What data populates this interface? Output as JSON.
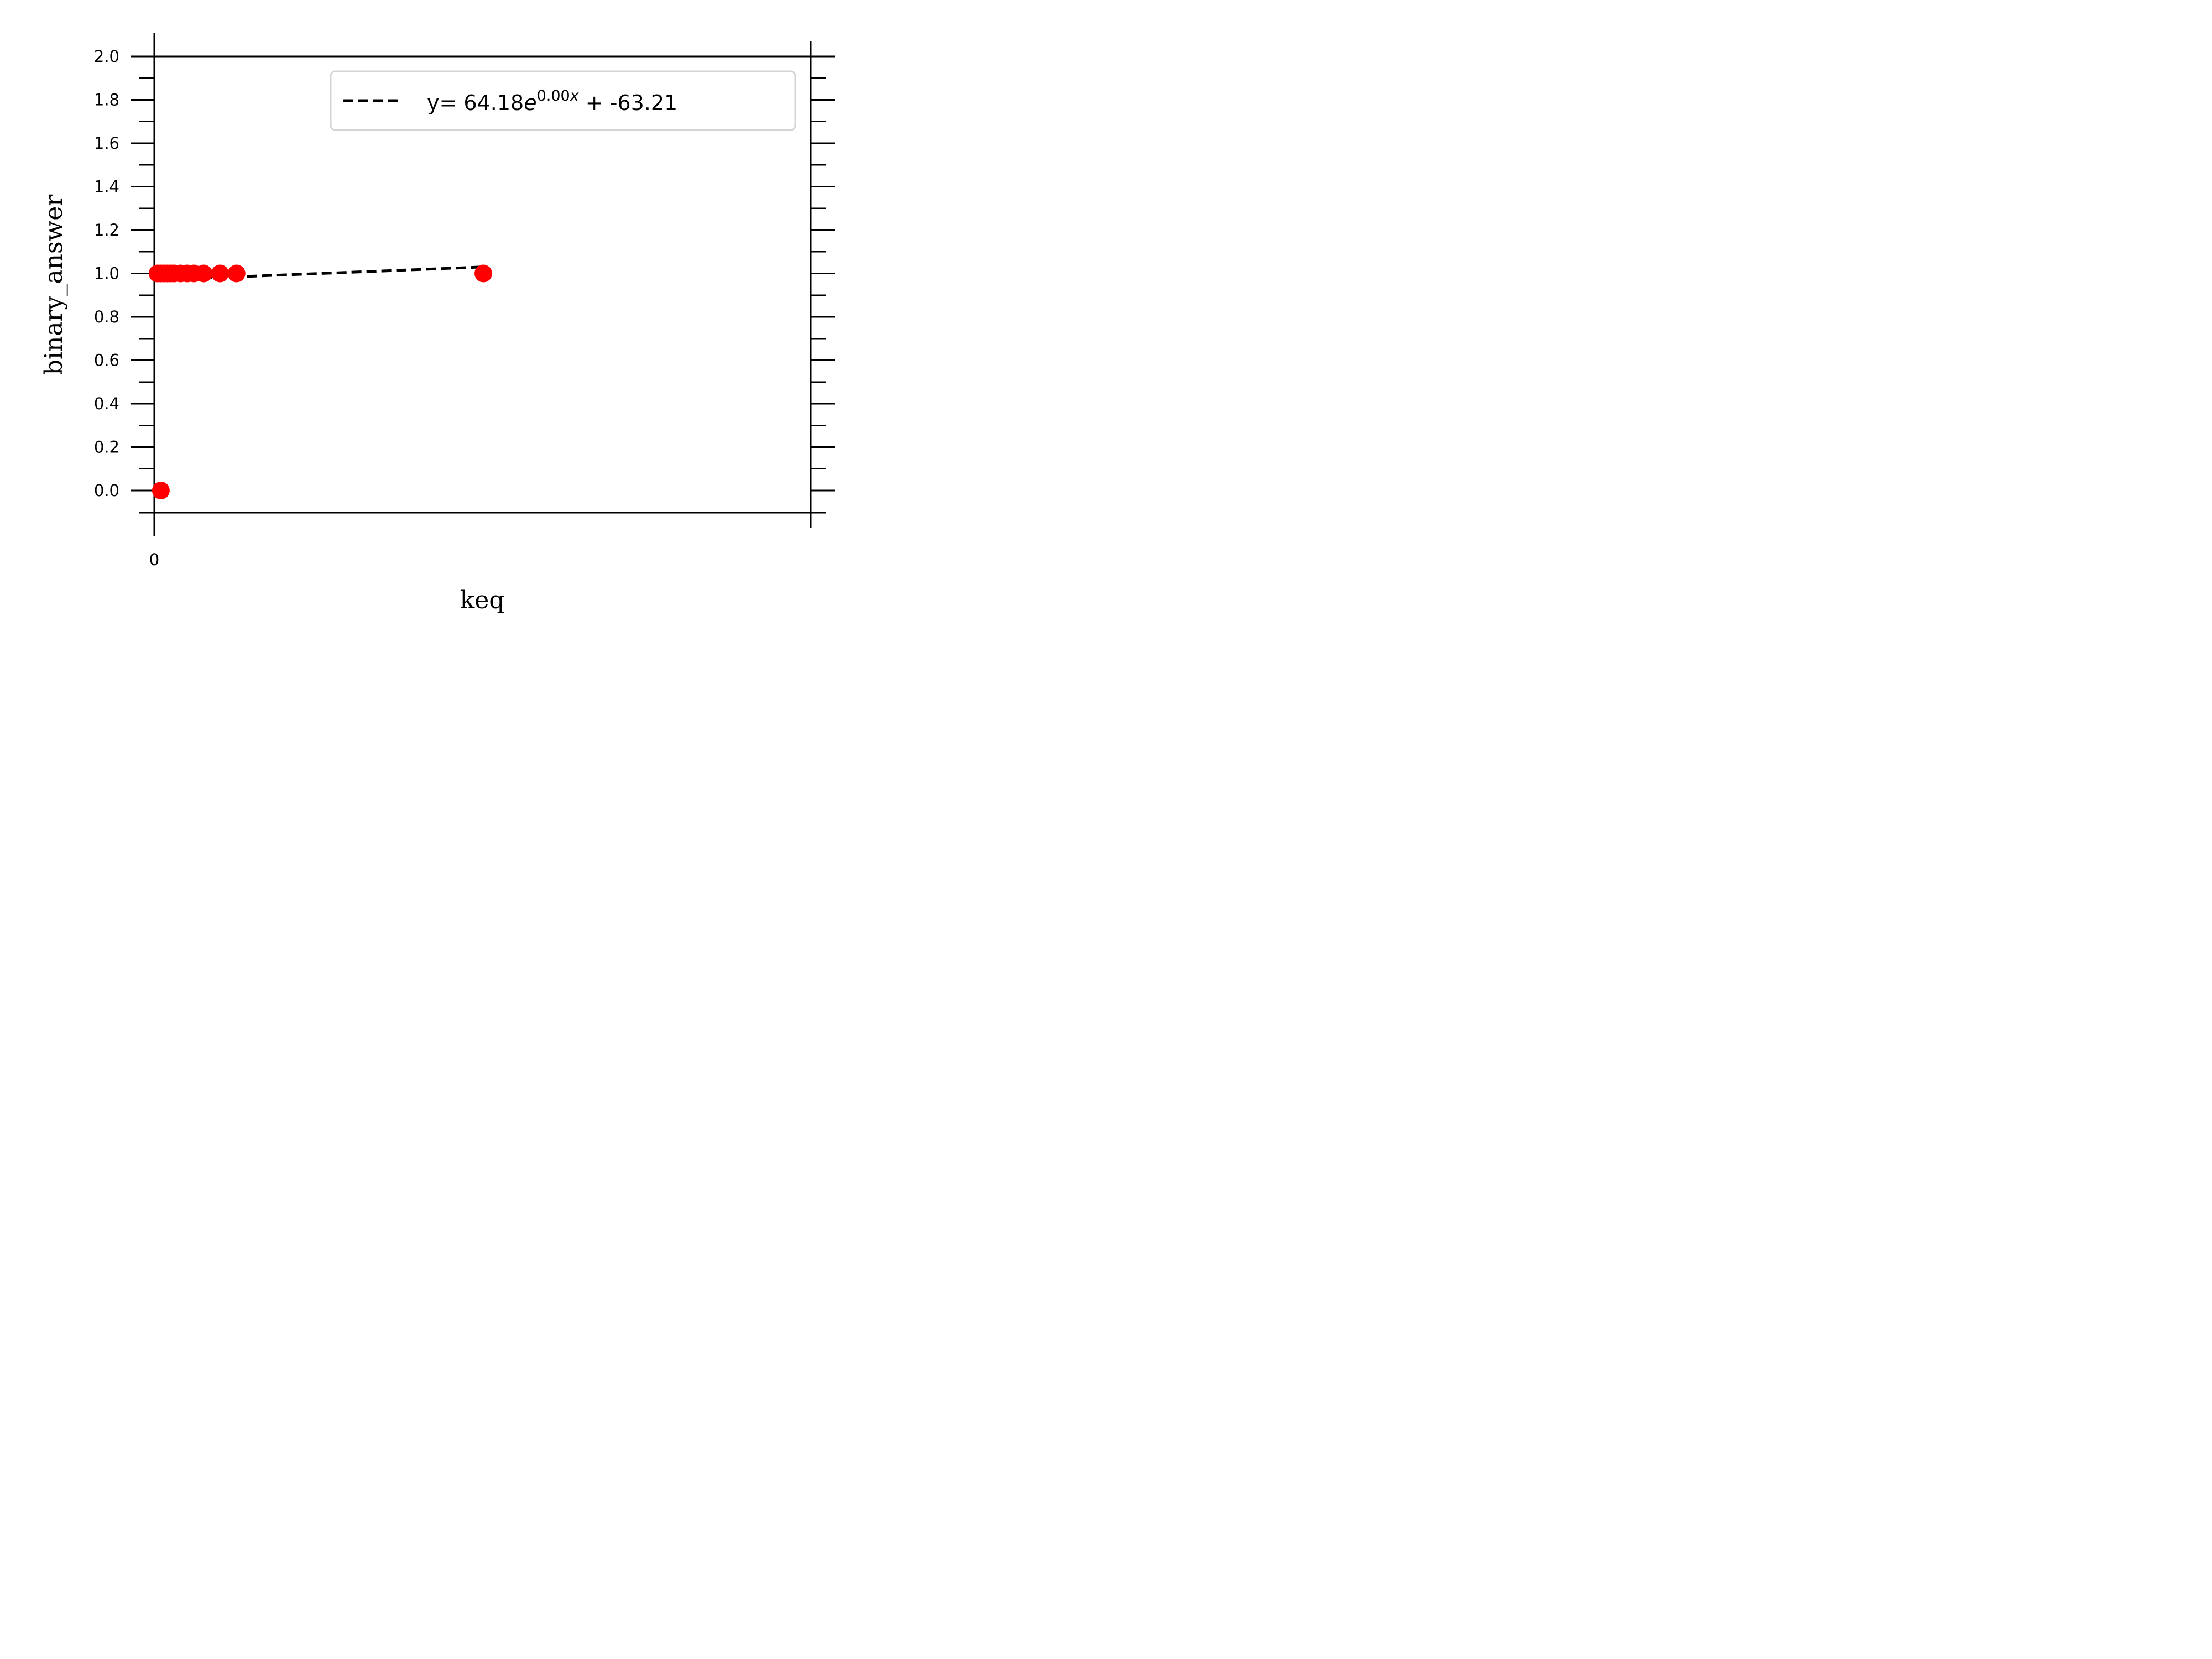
{
  "chart_data": {
    "type": "scatter",
    "xlabel": "keq",
    "ylabel": "binary_answer",
    "x_tick_labels": [
      "0"
    ],
    "y_tick_labels": [
      "0.0",
      "0.2",
      "0.4",
      "0.6",
      "0.8",
      "1.0",
      "1.2",
      "1.4",
      "1.6",
      "1.8",
      "2.0"
    ],
    "ylim": [
      -0.1,
      2.0
    ],
    "grid": false,
    "legend_position": "top-right",
    "points": [
      {
        "x": 2.0,
        "y": 0.0
      },
      {
        "x": 1.0,
        "y": 1.0
      },
      {
        "x": 2.0,
        "y": 1.0
      },
      {
        "x": 3.0,
        "y": 1.0
      },
      {
        "x": 4.0,
        "y": 1.0
      },
      {
        "x": 5.0,
        "y": 1.0
      },
      {
        "x": 6.0,
        "y": 1.0
      },
      {
        "x": 8.0,
        "y": 1.0
      },
      {
        "x": 10.0,
        "y": 1.0
      },
      {
        "x": 12.0,
        "y": 1.0
      },
      {
        "x": 15.0,
        "y": 1.0
      },
      {
        "x": 20.0,
        "y": 1.0
      },
      {
        "x": 25.0,
        "y": 1.0
      },
      {
        "x": 100.0,
        "y": 1.0
      }
    ],
    "fit_line": {
      "label_main": "y= 64.18",
      "label_e": "e",
      "label_exp": "0.00",
      "label_x": "x",
      "label_tail": " + -63.21",
      "x": [
        1.0,
        100.0
      ],
      "y": [
        0.97,
        1.03
      ]
    },
    "colors": {
      "points": "#ff0000",
      "fit_line": "#000000",
      "axes": "#000000",
      "legend_border": "#d4d4d4"
    }
  }
}
